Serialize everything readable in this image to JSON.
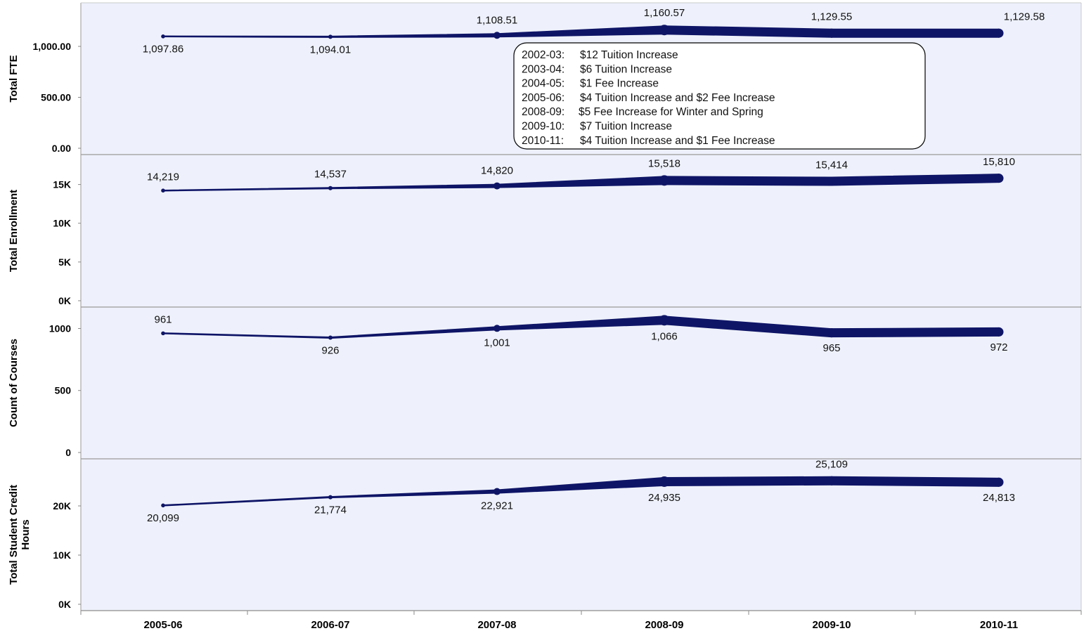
{
  "chart_data": {
    "type": "line",
    "x": [
      "2005-06",
      "2006-07",
      "2007-08",
      "2008-09",
      "2009-10",
      "2010-11"
    ],
    "grid": false,
    "colors": {
      "background": "#eef1fb",
      "line": "#0f1566",
      "divider": "#9a9a9a"
    },
    "panels": [
      {
        "ylabel": "Total FTE",
        "ylim": [
          0,
          1400
        ],
        "ticks": [
          {
            "v": 0,
            "label": "0.00"
          },
          {
            "v": 500,
            "label": "500.00"
          },
          {
            "v": 1000,
            "label": "1,000.00"
          }
        ],
        "values": [
          1097.86,
          1094.01,
          1108.51,
          1160.57,
          1129.55,
          1129.58
        ],
        "labels": [
          "1,097.86",
          "1,094.01",
          "1,108.51",
          "1,160.57",
          "1,129.55",
          "1,129.58"
        ],
        "label_pos": [
          "below",
          "below",
          "above",
          "above",
          "above",
          "above"
        ]
      },
      {
        "ylabel": "Total Enrollment",
        "ylim": [
          0,
          18500
        ],
        "ticks": [
          {
            "v": 0,
            "label": "0K"
          },
          {
            "v": 5000,
            "label": "5K"
          },
          {
            "v": 10000,
            "label": "10K"
          },
          {
            "v": 15000,
            "label": "15K"
          }
        ],
        "values": [
          14219,
          14537,
          14820,
          15518,
          15414,
          15810
        ],
        "labels": [
          "14,219",
          "14,537",
          "14,820",
          "15,518",
          "15,414",
          "15,810"
        ],
        "label_pos": [
          "above",
          "above",
          "above",
          "above",
          "above",
          "above"
        ]
      },
      {
        "ylabel": "Count of Courses",
        "ylim": [
          0,
          1150
        ],
        "ticks": [
          {
            "v": 0,
            "label": "0"
          },
          {
            "v": 500,
            "label": "500"
          },
          {
            "v": 1000,
            "label": "1000"
          }
        ],
        "values": [
          961,
          926,
          1001,
          1066,
          965,
          972
        ],
        "labels": [
          "961",
          "926",
          "1,001",
          "1,066",
          "965",
          "972"
        ],
        "label_pos": [
          "above",
          "below",
          "below",
          "below",
          "below",
          "below"
        ]
      },
      {
        "ylabel": "Total Student Credit Hours",
        "ylim": [
          0,
          29000
        ],
        "ticks": [
          {
            "v": 0,
            "label": "0K"
          },
          {
            "v": 10000,
            "label": "10K"
          },
          {
            "v": 20000,
            "label": "20K"
          }
        ],
        "values": [
          20099,
          21774,
          22921,
          24935,
          25109,
          24813
        ],
        "labels": [
          "20,099",
          "21,774",
          "22,921",
          "24,935",
          "25,109",
          "24,813"
        ],
        "label_pos": [
          "below",
          "below",
          "below",
          "below",
          "above",
          "below"
        ]
      }
    ],
    "annotation": {
      "lines": [
        {
          "year": "2002-03:",
          "text": "$12 Tuition Increase"
        },
        {
          "year": "2003-04:",
          "text": "$6 Tuition Increase"
        },
        {
          "year": "2004-05:",
          "text": " $1 Fee Increase"
        },
        {
          "year": "2005-06:",
          "text": "$4 Tuition Increase and $2 Fee Increase"
        },
        {
          "year": "2008-09:",
          "text": "$5 Fee Increase for Winter and Spring"
        },
        {
          "year": "2009-10:",
          "text": "$7 Tuition Increase"
        },
        {
          "year": "2010-11:",
          "text": "$4 Tuition Increase and $1 Fee Increase"
        }
      ]
    }
  }
}
